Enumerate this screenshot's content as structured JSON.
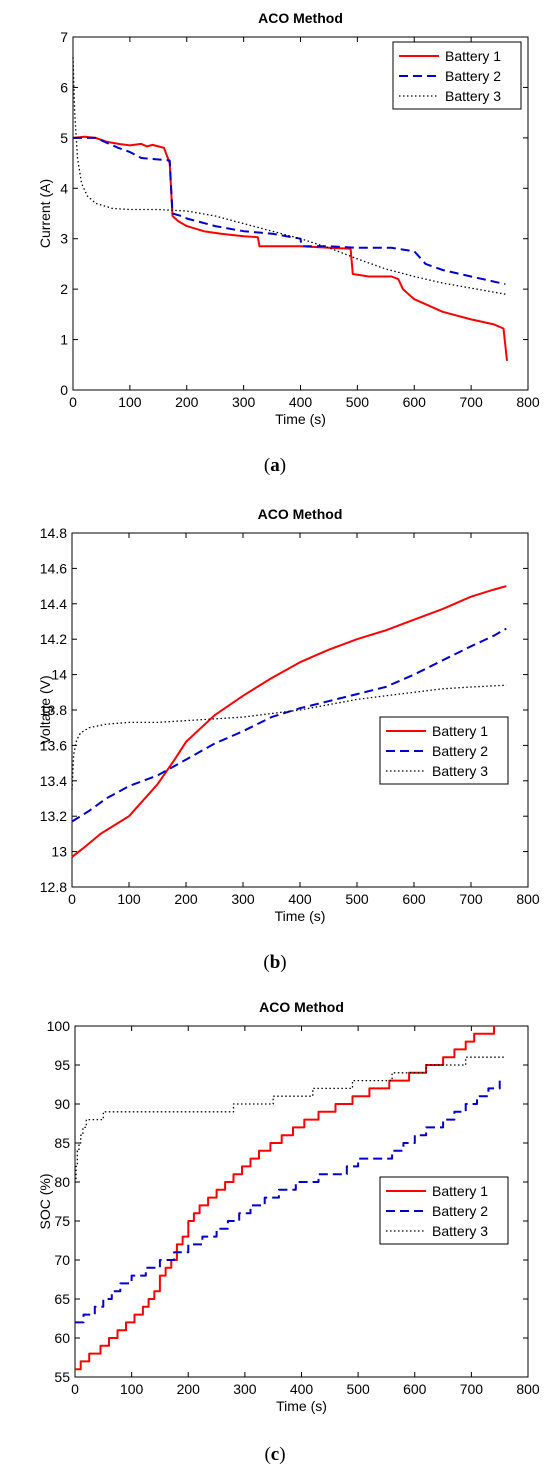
{
  "figure_captions": [
    {
      "open": "(",
      "letter": "a",
      "close": ")"
    },
    {
      "open": "(",
      "letter": "b",
      "close": ")"
    },
    {
      "open": "(",
      "letter": "c",
      "close": ")"
    }
  ],
  "colors": {
    "battery1": "#ff0000",
    "battery2": "#0000cc",
    "battery3": "#000000"
  },
  "chart_data": [
    {
      "type": "line",
      "title": "ACO Method",
      "xlabel": "Time (s)",
      "ylabel": "Current (A)",
      "xlim": [
        0,
        800
      ],
      "ylim": [
        0,
        7
      ],
      "xticks": [
        0,
        100,
        200,
        300,
        400,
        500,
        600,
        700,
        800
      ],
      "yticks": [
        0,
        1,
        2,
        3,
        4,
        5,
        6,
        7
      ],
      "grid": false,
      "legend_position": "top-right",
      "series": [
        {
          "name": "Battery 1",
          "color": "#ff0000",
          "style": "solid",
          "points": [
            [
              0,
              5.0
            ],
            [
              20,
              5.02
            ],
            [
              40,
              5.0
            ],
            [
              60,
              4.92
            ],
            [
              80,
              4.88
            ],
            [
              100,
              4.85
            ],
            [
              120,
              4.88
            ],
            [
              130,
              4.83
            ],
            [
              140,
              4.86
            ],
            [
              160,
              4.8
            ],
            [
              170,
              4.5
            ],
            [
              175,
              3.45
            ],
            [
              185,
              3.35
            ],
            [
              200,
              3.25
            ],
            [
              230,
              3.15
            ],
            [
              260,
              3.1
            ],
            [
              300,
              3.05
            ],
            [
              325,
              3.03
            ],
            [
              328,
              2.85
            ],
            [
              400,
              2.85
            ],
            [
              450,
              2.82
            ],
            [
              488,
              2.8
            ],
            [
              492,
              2.3
            ],
            [
              520,
              2.25
            ],
            [
              540,
              2.25
            ],
            [
              560,
              2.25
            ],
            [
              572,
              2.2
            ],
            [
              580,
              2.0
            ],
            [
              600,
              1.8
            ],
            [
              650,
              1.55
            ],
            [
              700,
              1.4
            ],
            [
              740,
              1.3
            ],
            [
              757,
              1.22
            ],
            [
              763,
              0.58
            ]
          ]
        },
        {
          "name": "Battery 2",
          "color": "#0000cc",
          "style": "dashed",
          "points": [
            [
              0,
              5.0
            ],
            [
              40,
              5.0
            ],
            [
              60,
              4.9
            ],
            [
              80,
              4.8
            ],
            [
              100,
              4.72
            ],
            [
              120,
              4.6
            ],
            [
              140,
              4.58
            ],
            [
              160,
              4.56
            ],
            [
              170,
              4.55
            ],
            [
              175,
              3.5
            ],
            [
              190,
              3.45
            ],
            [
              200,
              3.4
            ],
            [
              250,
              3.25
            ],
            [
              300,
              3.15
            ],
            [
              350,
              3.1
            ],
            [
              400,
              3.0
            ],
            [
              402,
              2.85
            ],
            [
              450,
              2.85
            ],
            [
              500,
              2.82
            ],
            [
              560,
              2.82
            ],
            [
              600,
              2.75
            ],
            [
              620,
              2.5
            ],
            [
              650,
              2.38
            ],
            [
              700,
              2.25
            ],
            [
              740,
              2.15
            ],
            [
              760,
              2.1
            ]
          ]
        },
        {
          "name": "Battery 3",
          "color": "#000000",
          "style": "dotted",
          "points": [
            [
              0,
              6.6
            ],
            [
              3,
              5.5
            ],
            [
              8,
              4.6
            ],
            [
              15,
              4.1
            ],
            [
              25,
              3.85
            ],
            [
              40,
              3.7
            ],
            [
              70,
              3.6
            ],
            [
              100,
              3.58
            ],
            [
              150,
              3.58
            ],
            [
              200,
              3.55
            ],
            [
              250,
              3.45
            ],
            [
              300,
              3.3
            ],
            [
              350,
              3.15
            ],
            [
              400,
              3.0
            ],
            [
              450,
              2.82
            ],
            [
              500,
              2.6
            ],
            [
              550,
              2.4
            ],
            [
              600,
              2.25
            ],
            [
              650,
              2.12
            ],
            [
              700,
              2.02
            ],
            [
              760,
              1.9
            ]
          ]
        }
      ]
    },
    {
      "type": "line",
      "title": "ACO Method",
      "xlabel": "Time (s)",
      "ylabel": "Voltage (V)",
      "xlim": [
        0,
        800
      ],
      "ylim": [
        12.8,
        14.8
      ],
      "xticks": [
        0,
        100,
        200,
        300,
        400,
        500,
        600,
        700,
        800
      ],
      "yticks": [
        12.8,
        13,
        13.2,
        13.4,
        13.6,
        13.8,
        14,
        14.2,
        14.4,
        14.6,
        14.8
      ],
      "grid": false,
      "legend_position": "center-right",
      "series": [
        {
          "name": "Battery 1",
          "color": "#ff0000",
          "style": "solid",
          "points": [
            [
              0,
              12.97
            ],
            [
              20,
              13.02
            ],
            [
              50,
              13.1
            ],
            [
              100,
              13.2
            ],
            [
              150,
              13.38
            ],
            [
              180,
              13.52
            ],
            [
              200,
              13.62
            ],
            [
              250,
              13.77
            ],
            [
              300,
              13.88
            ],
            [
              350,
              13.98
            ],
            [
              400,
              14.07
            ],
            [
              450,
              14.14
            ],
            [
              500,
              14.2
            ],
            [
              550,
              14.25
            ],
            [
              600,
              14.31
            ],
            [
              650,
              14.37
            ],
            [
              700,
              14.44
            ],
            [
              740,
              14.48
            ],
            [
              762,
              14.5
            ]
          ]
        },
        {
          "name": "Battery 2",
          "color": "#0000cc",
          "style": "dashed",
          "points": [
            [
              0,
              13.17
            ],
            [
              30,
              13.23
            ],
            [
              60,
              13.3
            ],
            [
              100,
              13.37
            ],
            [
              150,
              13.43
            ],
            [
              200,
              13.52
            ],
            [
              250,
              13.61
            ],
            [
              300,
              13.68
            ],
            [
              350,
              13.76
            ],
            [
              400,
              13.81
            ],
            [
              450,
              13.85
            ],
            [
              500,
              13.89
            ],
            [
              550,
              13.93
            ],
            [
              600,
              14.0
            ],
            [
              650,
              14.08
            ],
            [
              700,
              14.16
            ],
            [
              740,
              14.22
            ],
            [
              762,
              14.26
            ]
          ]
        },
        {
          "name": "Battery 3",
          "color": "#000000",
          "style": "dotted",
          "points": [
            [
              0,
              13.35
            ],
            [
              3,
              13.55
            ],
            [
              8,
              13.63
            ],
            [
              15,
              13.67
            ],
            [
              30,
              13.7
            ],
            [
              60,
              13.72
            ],
            [
              100,
              13.73
            ],
            [
              150,
              13.73
            ],
            [
              200,
              13.74
            ],
            [
              250,
              13.75
            ],
            [
              300,
              13.76
            ],
            [
              350,
              13.78
            ],
            [
              400,
              13.8
            ],
            [
              450,
              13.83
            ],
            [
              500,
              13.86
            ],
            [
              550,
              13.88
            ],
            [
              600,
              13.9
            ],
            [
              650,
              13.92
            ],
            [
              700,
              13.93
            ],
            [
              762,
              13.94
            ]
          ]
        }
      ]
    },
    {
      "type": "line",
      "title": "ACO Method",
      "xlabel": "Time (s)",
      "ylabel": "SOC (%)",
      "xlim": [
        0,
        800
      ],
      "ylim": [
        55,
        100
      ],
      "xticks": [
        0,
        100,
        200,
        300,
        400,
        500,
        600,
        700,
        800
      ],
      "yticks": [
        55,
        60,
        65,
        70,
        75,
        80,
        85,
        90,
        95,
        100
      ],
      "grid": false,
      "legend_position": "center-right",
      "series": [
        {
          "name": "Battery 1",
          "color": "#ff0000",
          "style": "solid",
          "step": true,
          "points": [
            [
              0,
              56
            ],
            [
              10,
              57
            ],
            [
              25,
              58
            ],
            [
              45,
              59
            ],
            [
              60,
              60
            ],
            [
              75,
              61
            ],
            [
              90,
              62
            ],
            [
              105,
              63
            ],
            [
              120,
              64
            ],
            [
              130,
              65
            ],
            [
              140,
              66
            ],
            [
              150,
              68
            ],
            [
              160,
              69
            ],
            [
              170,
              70
            ],
            [
              180,
              72
            ],
            [
              190,
              73
            ],
            [
              200,
              75
            ],
            [
              210,
              76
            ],
            [
              220,
              77
            ],
            [
              235,
              78
            ],
            [
              250,
              79
            ],
            [
              265,
              80
            ],
            [
              280,
              81
            ],
            [
              295,
              82
            ],
            [
              310,
              83
            ],
            [
              325,
              84
            ],
            [
              345,
              85
            ],
            [
              365,
              86
            ],
            [
              385,
              87
            ],
            [
              405,
              88
            ],
            [
              430,
              89
            ],
            [
              460,
              90
            ],
            [
              490,
              91
            ],
            [
              520,
              92
            ],
            [
              555,
              93
            ],
            [
              590,
              94
            ],
            [
              620,
              95
            ],
            [
              650,
              96
            ],
            [
              670,
              97
            ],
            [
              690,
              98
            ],
            [
              705,
              99
            ],
            [
              740,
              100
            ]
          ]
        },
        {
          "name": "Battery 2",
          "color": "#0000cc",
          "style": "dashed",
          "step": true,
          "points": [
            [
              0,
              62
            ],
            [
              15,
              63
            ],
            [
              35,
              64
            ],
            [
              50,
              65
            ],
            [
              65,
              66
            ],
            [
              80,
              67
            ],
            [
              100,
              68
            ],
            [
              125,
              69
            ],
            [
              150,
              70
            ],
            [
              175,
              71
            ],
            [
              200,
              72
            ],
            [
              225,
              73
            ],
            [
              250,
              74
            ],
            [
              270,
              75
            ],
            [
              290,
              76
            ],
            [
              310,
              77
            ],
            [
              335,
              78
            ],
            [
              360,
              79
            ],
            [
              390,
              80
            ],
            [
              430,
              81
            ],
            [
              480,
              82
            ],
            [
              500,
              83
            ],
            [
              560,
              84
            ],
            [
              580,
              85
            ],
            [
              600,
              86
            ],
            [
              620,
              87
            ],
            [
              650,
              88
            ],
            [
              670,
              89
            ],
            [
              690,
              90
            ],
            [
              710,
              91
            ],
            [
              730,
              92
            ],
            [
              750,
              93
            ]
          ]
        },
        {
          "name": "Battery 3",
          "color": "#000000",
          "style": "dotted",
          "step": true,
          "points": [
            [
              0,
              80
            ],
            [
              2,
              82
            ],
            [
              4,
              84
            ],
            [
              7,
              85
            ],
            [
              10,
              86
            ],
            [
              14,
              87
            ],
            [
              20,
              88
            ],
            [
              50,
              89
            ],
            [
              150,
              89
            ],
            [
              250,
              89
            ],
            [
              280,
              90
            ],
            [
              350,
              91
            ],
            [
              420,
              92
            ],
            [
              490,
              93
            ],
            [
              560,
              94
            ],
            [
              620,
              95
            ],
            [
              690,
              96
            ],
            [
              760,
              96
            ]
          ]
        }
      ]
    }
  ]
}
